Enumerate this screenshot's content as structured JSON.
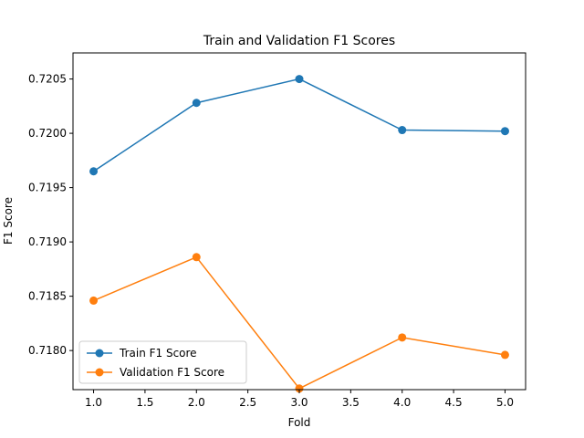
{
  "chart_data": {
    "type": "line",
    "title": "Train and Validation F1 Scores",
    "xlabel": "Fold",
    "ylabel": "F1 Score",
    "x": [
      1,
      2,
      3,
      4,
      5
    ],
    "xlim": [
      0.8,
      5.2
    ],
    "ylim": [
      0.71764,
      0.72074
    ],
    "xticks": [
      "1.0",
      "1.5",
      "2.0",
      "2.5",
      "3.0",
      "3.5",
      "4.0",
      "4.5",
      "5.0"
    ],
    "yticks": [
      "0.7180",
      "0.7185",
      "0.7190",
      "0.7195",
      "0.7200",
      "0.7205"
    ],
    "grid": false,
    "legend_position": "lower-left",
    "series": [
      {
        "name": "Train F1 Score",
        "color": "#1f77b4",
        "marker": "circle",
        "values": [
          0.71965,
          0.72028,
          0.7205,
          0.72003,
          0.72002
        ]
      },
      {
        "name": "Validation F1 Score",
        "color": "#ff7f0e",
        "marker": "circle",
        "values": [
          0.71846,
          0.71886,
          0.71765,
          0.71812,
          0.71796
        ]
      }
    ]
  }
}
